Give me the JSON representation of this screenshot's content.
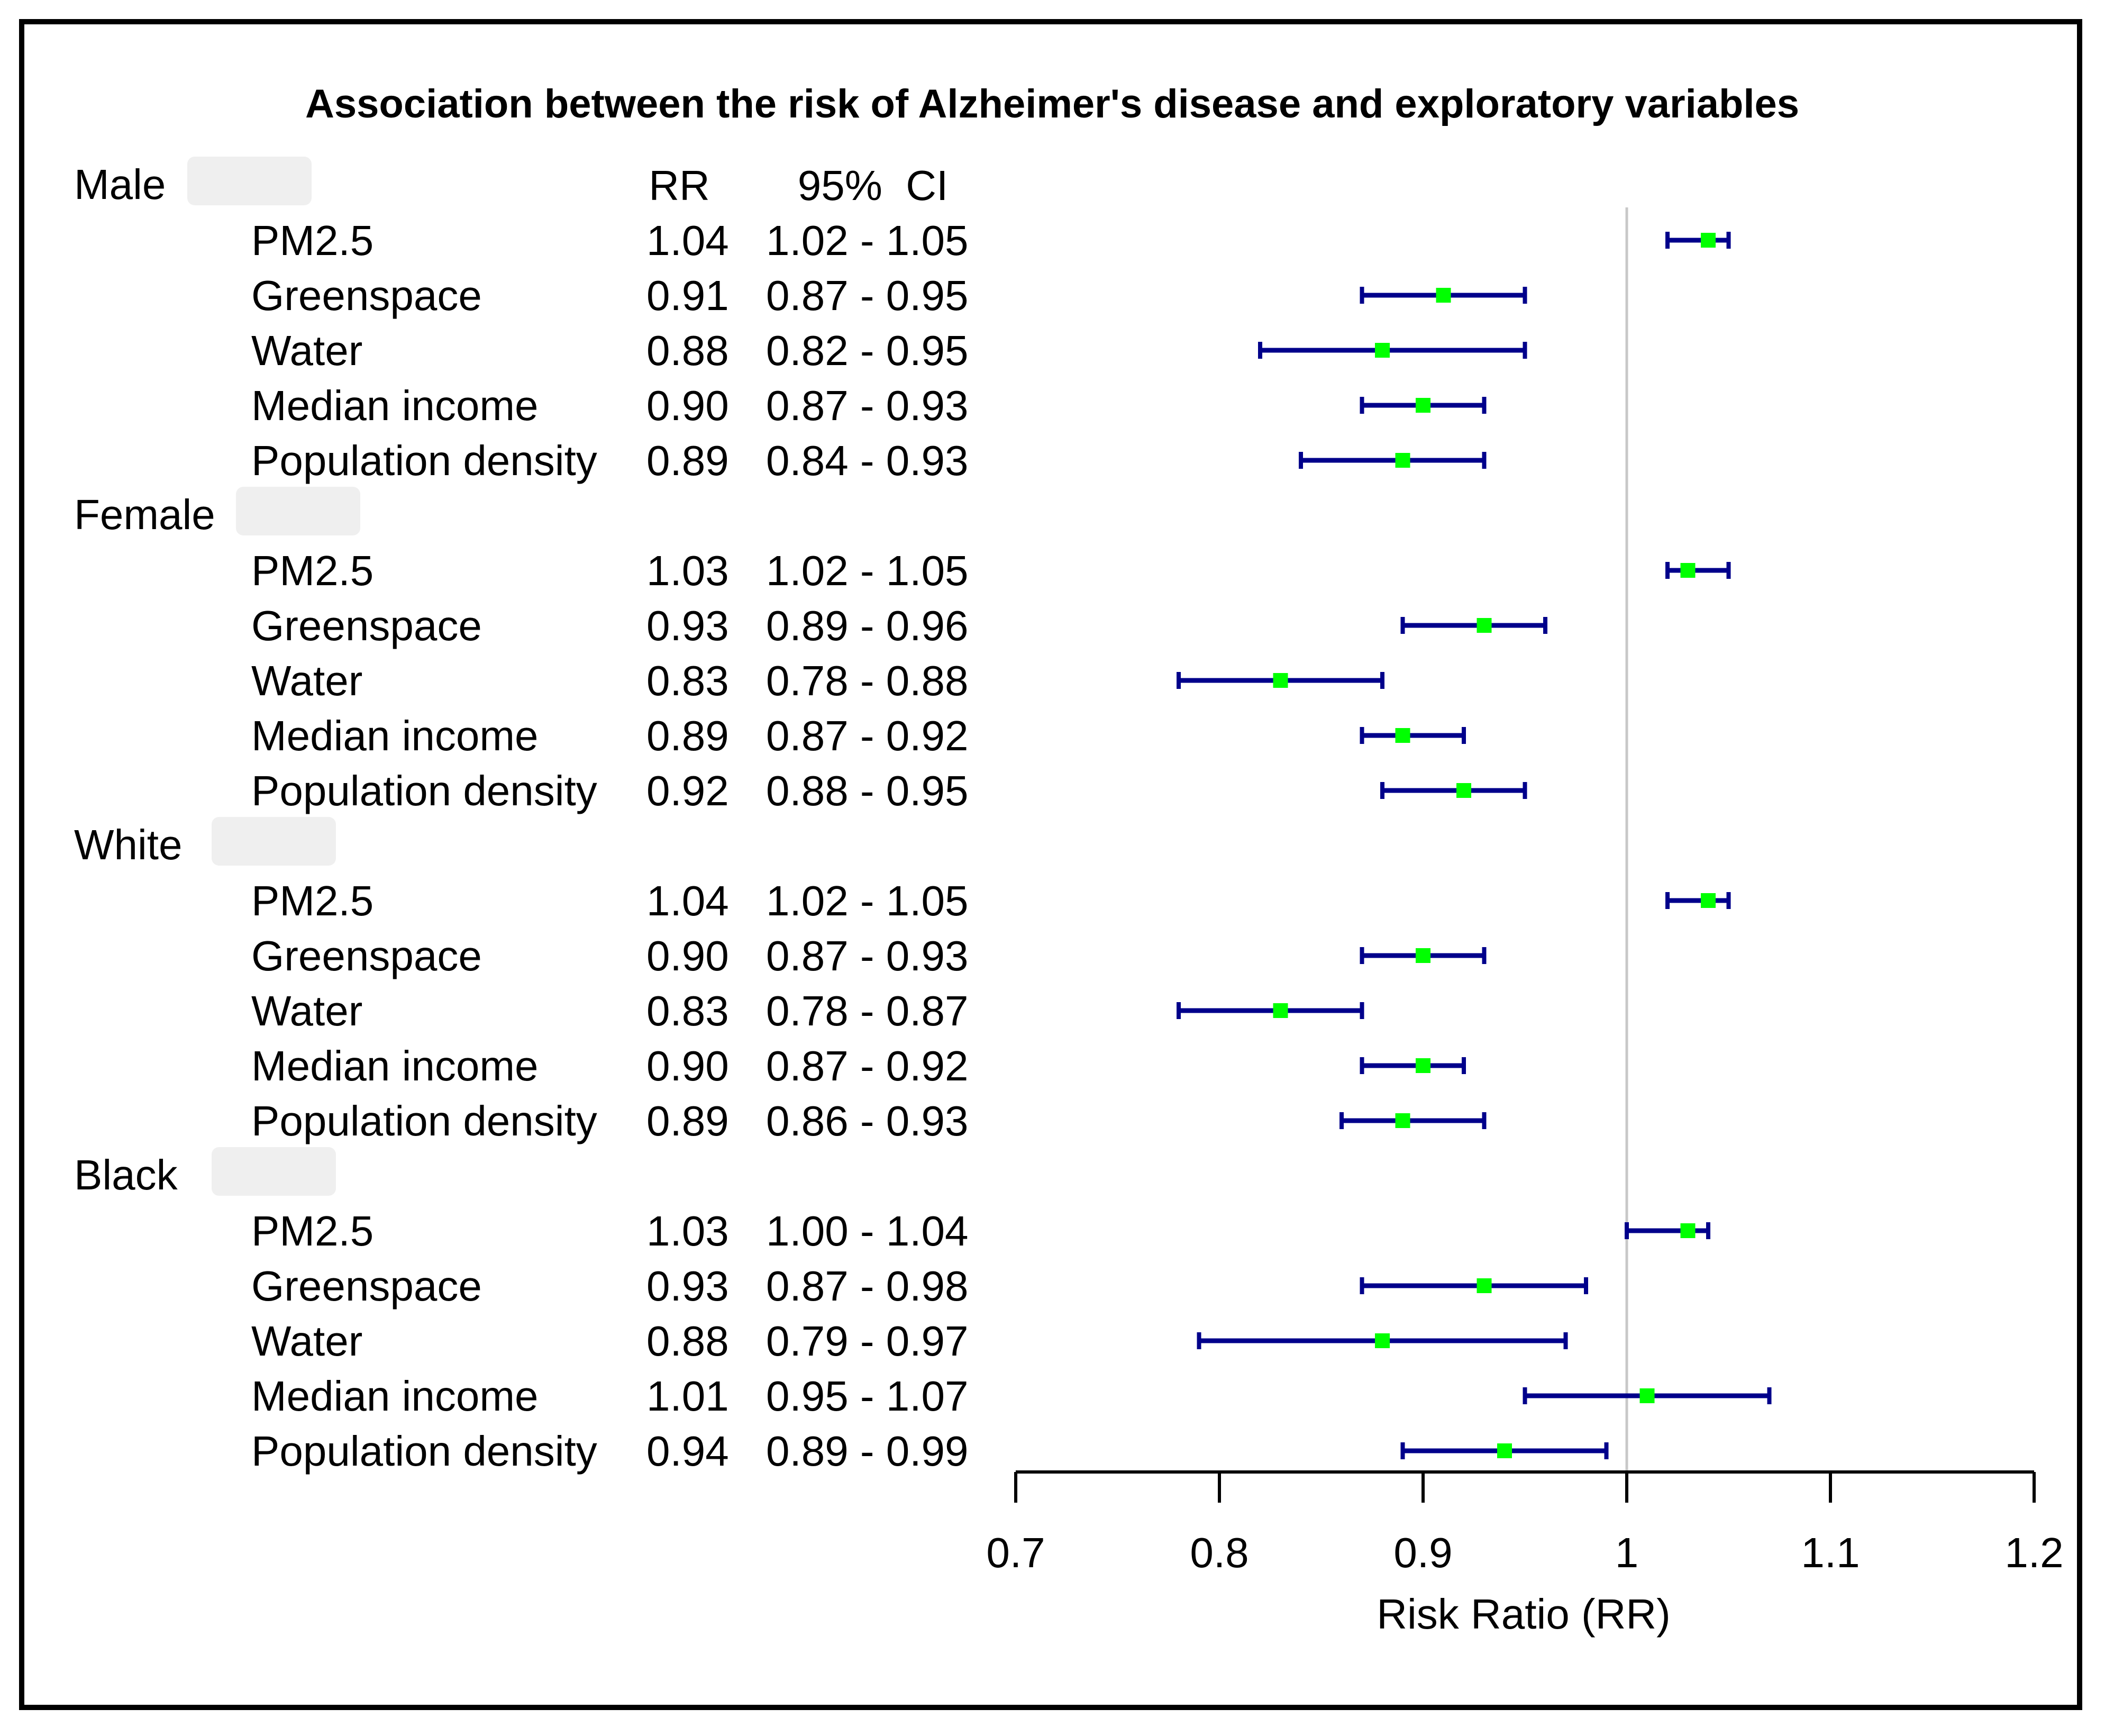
{
  "chart_data": {
    "type": "forest",
    "title": "Association between the risk of Alzheimer's disease and exploratory variables",
    "column_headers": {
      "rr": "RR",
      "ci": "95%  CI"
    },
    "xlabel": "Risk Ratio (RR)",
    "xlim": [
      0.7,
      1.2
    ],
    "xticks": [
      0.7,
      0.8,
      0.9,
      1,
      1.1,
      1.2
    ],
    "xtick_labels": [
      "0.7",
      "0.8",
      "0.9",
      "1",
      "1.1",
      "1.2"
    ],
    "reference_line": 1,
    "groups": [
      {
        "name": "Male",
        "rows": [
          {
            "label": "PM2.5",
            "rr": 1.04,
            "lo": 1.02,
            "hi": 1.05,
            "rr_text": "1.04",
            "ci_text": "1.02 - 1.05"
          },
          {
            "label": "Greenspace",
            "rr": 0.91,
            "lo": 0.87,
            "hi": 0.95,
            "rr_text": "0.91",
            "ci_text": "0.87 - 0.95"
          },
          {
            "label": "Water",
            "rr": 0.88,
            "lo": 0.82,
            "hi": 0.95,
            "rr_text": "0.88",
            "ci_text": "0.82 - 0.95"
          },
          {
            "label": "Median income",
            "rr": 0.9,
            "lo": 0.87,
            "hi": 0.93,
            "rr_text": "0.90",
            "ci_text": "0.87 - 0.93"
          },
          {
            "label": "Population density",
            "rr": 0.89,
            "lo": 0.84,
            "hi": 0.93,
            "rr_text": "0.89",
            "ci_text": "0.84 - 0.93"
          }
        ]
      },
      {
        "name": "Female",
        "rows": [
          {
            "label": "PM2.5",
            "rr": 1.03,
            "lo": 1.02,
            "hi": 1.05,
            "rr_text": "1.03",
            "ci_text": "1.02 - 1.05"
          },
          {
            "label": "Greenspace",
            "rr": 0.93,
            "lo": 0.89,
            "hi": 0.96,
            "rr_text": "0.93",
            "ci_text": "0.89 - 0.96"
          },
          {
            "label": "Water",
            "rr": 0.83,
            "lo": 0.78,
            "hi": 0.88,
            "rr_text": "0.83",
            "ci_text": "0.78 - 0.88"
          },
          {
            "label": "Median income",
            "rr": 0.89,
            "lo": 0.87,
            "hi": 0.92,
            "rr_text": "0.89",
            "ci_text": "0.87 - 0.92"
          },
          {
            "label": "Population density",
            "rr": 0.92,
            "lo": 0.88,
            "hi": 0.95,
            "rr_text": "0.92",
            "ci_text": "0.88 - 0.95"
          }
        ]
      },
      {
        "name": "White",
        "rows": [
          {
            "label": "PM2.5",
            "rr": 1.04,
            "lo": 1.02,
            "hi": 1.05,
            "rr_text": "1.04",
            "ci_text": "1.02 - 1.05"
          },
          {
            "label": "Greenspace",
            "rr": 0.9,
            "lo": 0.87,
            "hi": 0.93,
            "rr_text": "0.90",
            "ci_text": "0.87 - 0.93"
          },
          {
            "label": "Water",
            "rr": 0.83,
            "lo": 0.78,
            "hi": 0.87,
            "rr_text": "0.83",
            "ci_text": "0.78 - 0.87"
          },
          {
            "label": "Median income",
            "rr": 0.9,
            "lo": 0.87,
            "hi": 0.92,
            "rr_text": "0.90",
            "ci_text": "0.87 - 0.92"
          },
          {
            "label": "Population density",
            "rr": 0.89,
            "lo": 0.86,
            "hi": 0.93,
            "rr_text": "0.89",
            "ci_text": "0.86 - 0.93"
          }
        ]
      },
      {
        "name": "Black",
        "rows": [
          {
            "label": "PM2.5",
            "rr": 1.03,
            "lo": 1.0,
            "hi": 1.04,
            "rr_text": "1.03",
            "ci_text": "1.00 - 1.04"
          },
          {
            "label": "Greenspace",
            "rr": 0.93,
            "lo": 0.87,
            "hi": 0.98,
            "rr_text": "0.93",
            "ci_text": "0.87 - 0.98"
          },
          {
            "label": "Water",
            "rr": 0.88,
            "lo": 0.79,
            "hi": 0.97,
            "rr_text": "0.88",
            "ci_text": "0.79 - 0.97"
          },
          {
            "label": "Median income",
            "rr": 1.01,
            "lo": 0.95,
            "hi": 1.07,
            "rr_text": "1.01",
            "ci_text": "0.95 - 1.07"
          },
          {
            "label": "Population density",
            "rr": 0.94,
            "lo": 0.89,
            "hi": 0.99,
            "rr_text": "0.94",
            "ci_text": "0.89 - 0.99"
          }
        ]
      }
    ]
  },
  "colors": {
    "ci_line": "#00008b",
    "point": "#00ff00",
    "reference_line": "#c8c8c8",
    "axis": "#000000",
    "group_label_shade": "#efefef"
  }
}
